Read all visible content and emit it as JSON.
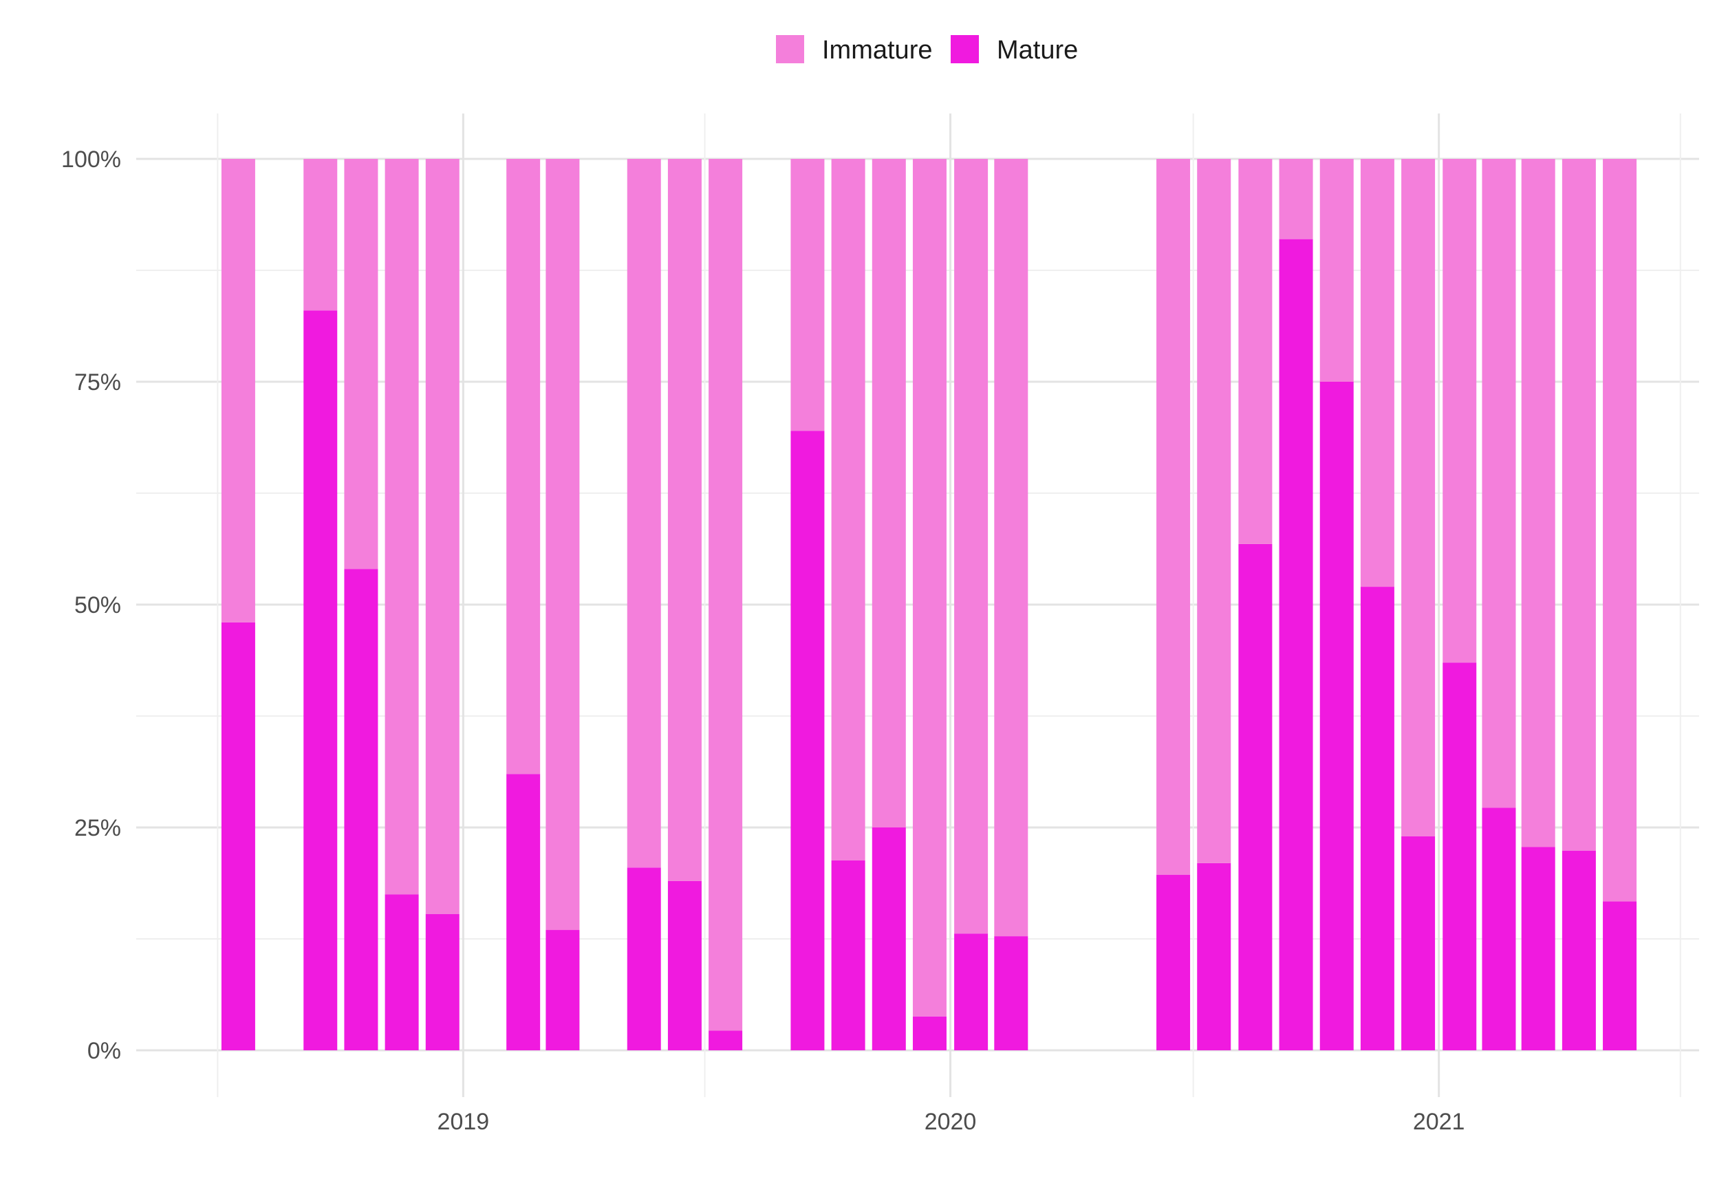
{
  "chart_data": {
    "type": "bar",
    "stacked": true,
    "normalized": true,
    "title": "",
    "xlabel": "",
    "ylabel": "",
    "ylim": [
      0,
      1
    ],
    "y_ticks": [
      0,
      0.25,
      0.5,
      0.75,
      1
    ],
    "y_tick_labels": [
      "0%",
      "25%",
      "50%",
      "75%",
      "100%"
    ],
    "x_tick_labels": [
      "2019",
      "2020",
      "2021"
    ],
    "x_ticks": [
      "2019-01-01",
      "2020-01-01",
      "2021-01-01"
    ],
    "x_minor_ticks": [
      "2018-07-01",
      "2019-07-01",
      "2020-07-01",
      "2021-07-01"
    ],
    "xlim": [
      "2018-05-01",
      "2021-07-15"
    ],
    "grid": true,
    "legend": {
      "position": "top",
      "entries": [
        "Immature",
        "Mature"
      ]
    },
    "colors": {
      "Immature": "#f47fdb",
      "Mature": "#f01adf"
    },
    "x": [
      "2018-07",
      "2018-09",
      "2018-10",
      "2018-11",
      "2018-12",
      "2019-02",
      "2019-03",
      "2019-05",
      "2019-06",
      "2019-07",
      "2019-09",
      "2019-10",
      "2019-11",
      "2019-12",
      "2020-01",
      "2020-02",
      "2020-06",
      "2020-07",
      "2020-08",
      "2020-09",
      "2020-10",
      "2020-11",
      "2020-12",
      "2021-01",
      "2021-02",
      "2021-03",
      "2021-04",
      "2021-05"
    ],
    "series": [
      {
        "name": "Mature",
        "values": [
          0.48,
          0.83,
          0.54,
          0.175,
          0.153,
          0.31,
          0.135,
          0.205,
          0.19,
          0.022,
          0.695,
          0.213,
          0.25,
          0.038,
          0.131,
          0.128,
          0.197,
          0.21,
          0.568,
          0.91,
          0.75,
          0.52,
          0.24,
          0.435,
          0.272,
          0.228,
          0.224,
          0.167
        ]
      },
      {
        "name": "Immature",
        "values": [
          0.52,
          0.17,
          0.46,
          0.825,
          0.847,
          0.69,
          0.865,
          0.795,
          0.81,
          0.978,
          0.305,
          0.787,
          0.75,
          0.962,
          0.869,
          0.872,
          0.803,
          0.79,
          0.432,
          0.09,
          0.25,
          0.48,
          0.76,
          0.565,
          0.728,
          0.772,
          0.776,
          0.833
        ]
      }
    ]
  }
}
